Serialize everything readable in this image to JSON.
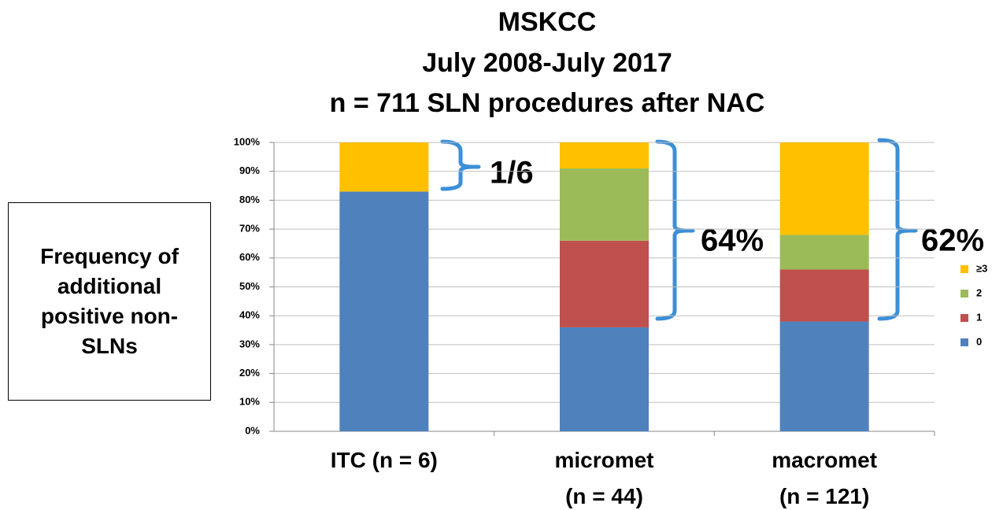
{
  "chart_data": {
    "type": "stacked_bar",
    "title": [
      "MSKCC",
      "July 2008-July 2017",
      "n = 711 SLN procedures after NAC"
    ],
    "y_label": "Frequency of additional positive non-SLNs",
    "categories": [
      "ITC (n = 6)",
      "micromet\n(n = 44)",
      "macromet\n(n = 121)"
    ],
    "series": [
      {
        "name": "0",
        "color": "#4f81bd",
        "values": [
          83,
          36,
          38
        ]
      },
      {
        "name": "1",
        "color": "#c0504d",
        "values": [
          0,
          30,
          18
        ]
      },
      {
        "name": "2",
        "color": "#9bbb59",
        "values": [
          0,
          25,
          12
        ]
      },
      {
        "name": "≥3",
        "color": "#ffc000",
        "values": [
          17,
          9,
          32
        ]
      }
    ],
    "ylim": [
      0,
      100
    ],
    "yticks": [
      {
        "value": 0,
        "label": "0%"
      },
      {
        "value": 10,
        "label": "10%"
      },
      {
        "value": 20,
        "label": "20%"
      },
      {
        "value": 30,
        "label": "30%"
      },
      {
        "value": 40,
        "label": "40%"
      },
      {
        "value": 50,
        "label": "50%"
      },
      {
        "value": 60,
        "label": "60%"
      },
      {
        "value": 70,
        "label": "70%"
      },
      {
        "value": 80,
        "label": "80%"
      },
      {
        "value": 90,
        "label": "90%"
      },
      {
        "value": 100,
        "label": "100%"
      }
    ],
    "grid": true,
    "legend": "right",
    "annotations": [
      "1/6",
      "64%",
      "62%"
    ]
  }
}
